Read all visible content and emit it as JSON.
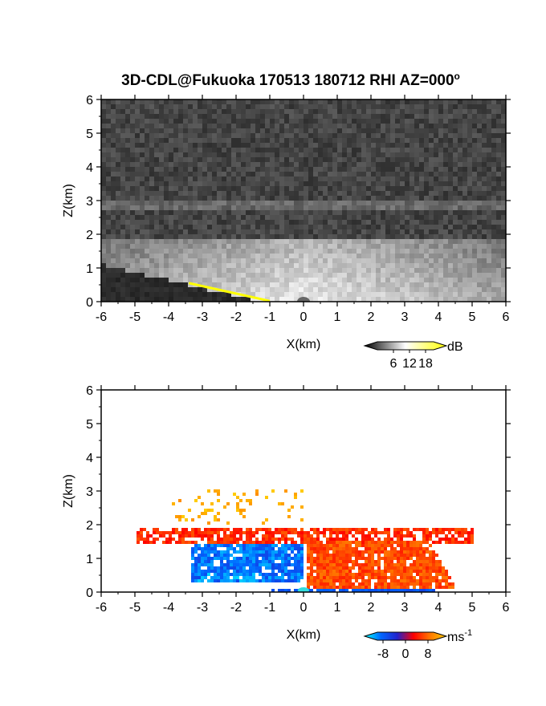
{
  "title": "3D-CDL@Fukuoka 170513 180712 RHI AZ=000",
  "title_degree": "o",
  "chart_data": [
    {
      "type": "heatmap",
      "quantity": "backscatter intensity",
      "xlabel": "X(km)",
      "ylabel": "Z(km)",
      "xlim": [
        -6,
        6
      ],
      "ylim": [
        0,
        6
      ],
      "xticks": [
        "-6",
        "-5",
        "-4",
        "-3",
        "-2",
        "-1",
        "0",
        "1",
        "2",
        "3",
        "4",
        "5",
        "6"
      ],
      "yticks": [
        "0",
        "1",
        "2",
        "3",
        "4",
        "5",
        "6"
      ],
      "colorbar": {
        "unit": "dB",
        "range": [
          0,
          21
        ],
        "tick_labels": [
          "6",
          "12",
          "18"
        ],
        "tick_values": [
          6,
          12,
          18
        ],
        "colors": [
          "#000000",
          "#ffffff",
          "#ffff00"
        ]
      },
      "features": [
        {
          "layer": "aerosol layer",
          "z_range_km": [
            0,
            2.0
          ],
          "intensity_db": 10
        },
        {
          "layer": "upper band",
          "z_range_km": [
            2.8,
            3.1
          ],
          "intensity_db": 6
        },
        {
          "layer": "terrain blockage line",
          "x_range_km": [
            -3.4,
            -1.0
          ],
          "z_range_km": [
            0.55,
            0.02
          ],
          "color": "#ffff00"
        }
      ]
    },
    {
      "type": "heatmap",
      "quantity": "radial velocity",
      "xlabel": "X(km)",
      "ylabel": "Z(km)",
      "xlim": [
        -6,
        6
      ],
      "ylim": [
        0,
        6
      ],
      "xticks": [
        "-6",
        "-5",
        "-4",
        "-3",
        "-2",
        "-1",
        "0",
        "1",
        "2",
        "3",
        "4",
        "5",
        "6"
      ],
      "yticks": [
        "0",
        "1",
        "2",
        "3",
        "4",
        "5",
        "6"
      ],
      "colorbar": {
        "unit": "ms",
        "unit_exponent": "-1",
        "range": [
          -10,
          10
        ],
        "tick_labels": [
          "-8",
          "0",
          "8"
        ],
        "tick_values": [
          -8,
          0,
          8
        ],
        "colors": [
          "#00ffff",
          "#0066ff",
          "#2222cc",
          "#ff0000",
          "#ff7700",
          "#ffcc00"
        ]
      },
      "regions": [
        {
          "region": "negative velocity core",
          "x_range_km": [
            -3.4,
            0.0
          ],
          "z_range_km": [
            0.3,
            1.5
          ],
          "velocity_ms": -7
        },
        {
          "region": "positive velocity core",
          "x_range_km": [
            0.0,
            4.5
          ],
          "z_range_km": [
            0.1,
            1.9
          ],
          "velocity_ms": 4
        },
        {
          "region": "top layer",
          "x_range_km": [
            -5.0,
            5.0
          ],
          "z_range_km": [
            1.5,
            2.0
          ],
          "velocity_ms": 3
        },
        {
          "region": "sparse aloft",
          "x_range_km": [
            -4.0,
            0.0
          ],
          "z_range_km": [
            2.0,
            3.1
          ],
          "velocity_ms": 9
        }
      ]
    }
  ]
}
